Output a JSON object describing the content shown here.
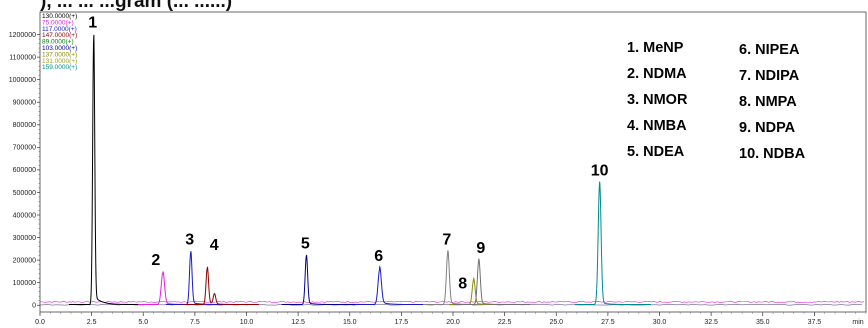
{
  "title": "), ... ... ...gram (... ......)",
  "chart_data": {
    "type": "line",
    "xlabel": "min",
    "xlim": [
      0,
      40
    ],
    "ylim": [
      -30000,
      1300000
    ],
    "x_ticks": [
      "0.0",
      "2.5",
      "5.0",
      "7.5",
      "10.0",
      "12.5",
      "15.0",
      "17.5",
      "20.0",
      "22.5",
      "25.0",
      "27.5",
      "30.0",
      "32.5",
      "35.0",
      "37.5"
    ],
    "y_ticks": [
      "0",
      "100000",
      "200000",
      "300000",
      "400000",
      "500000",
      "600000",
      "700000",
      "800000",
      "900000",
      "1000000",
      "1100000",
      "1200000"
    ],
    "ion_labels": [
      {
        "text": "130.0000(+)",
        "color": "#000000"
      },
      {
        "text": "75.0000(+)",
        "color": "#e020e0"
      },
      {
        "text": "117.0000(+)",
        "color": "#1a1ac8"
      },
      {
        "text": "147.0000(+)",
        "color": "#8b0000"
      },
      {
        "text": "89.0000(+)",
        "color": "#008000"
      },
      {
        "text": "103.0000(+)",
        "color": "#00008b"
      },
      {
        "text": "137.0000(+)",
        "color": "#8b8b00"
      },
      {
        "text": "131.0000(+)",
        "color": "#a0a020"
      },
      {
        "text": "159.0000(+)",
        "color": "#008b8b"
      }
    ],
    "series": [
      {
        "peak": "1",
        "color": "#000000",
        "rt": 2.6,
        "height": 1180000,
        "width": 0.05,
        "tail": 40000
      },
      {
        "peak": "2",
        "color": "#e020e0",
        "rt": 5.95,
        "height": 140000,
        "width": 0.08,
        "tail": 8000
      },
      {
        "peak": "3",
        "color": "#1a1ac8",
        "rt": 7.3,
        "height": 230000,
        "width": 0.06,
        "tail": 10000
      },
      {
        "peak": "4",
        "color": "#8b0000",
        "rt": 8.1,
        "height": 160000,
        "width": 0.06,
        "tail": 10000,
        "secondary": {
          "rt": 8.45,
          "height": 45000
        }
      },
      {
        "peak": "5",
        "color": "#00008b",
        "rt": 12.9,
        "height": 215000,
        "width": 0.06,
        "tail": 8000
      },
      {
        "peak": "6",
        "color": "#1a1ac8",
        "rt": 16.45,
        "height": 155000,
        "width": 0.08,
        "tail": 12000
      },
      {
        "peak": "7",
        "color": "#808080",
        "rt": 19.75,
        "height": 230000,
        "width": 0.07,
        "tail": 10000
      },
      {
        "peak": "8",
        "color": "#8b8b00",
        "rt": 21.0,
        "height": 110000,
        "width": 0.07,
        "tail": 6000
      },
      {
        "peak": "9",
        "color": "#707070",
        "rt": 21.25,
        "height": 195000,
        "width": 0.07,
        "tail": 8000
      },
      {
        "peak": "10",
        "color": "#008b8b",
        "rt": 27.1,
        "height": 535000,
        "width": 0.07,
        "tail": 10000
      }
    ],
    "baseline": {
      "color": "#e020e0",
      "level": 15000
    },
    "legend": {
      "placement": "top-right",
      "left_column": [
        "1. MeNP",
        "2. NDMA",
        "3. NMOR",
        "4. NMBA",
        "5. NDEA"
      ],
      "right_column": [
        "6.   NIPEA",
        "7.  NDIPA",
        "8.  NMPA",
        "9.  NDPA",
        "10. NDBA"
      ]
    }
  }
}
